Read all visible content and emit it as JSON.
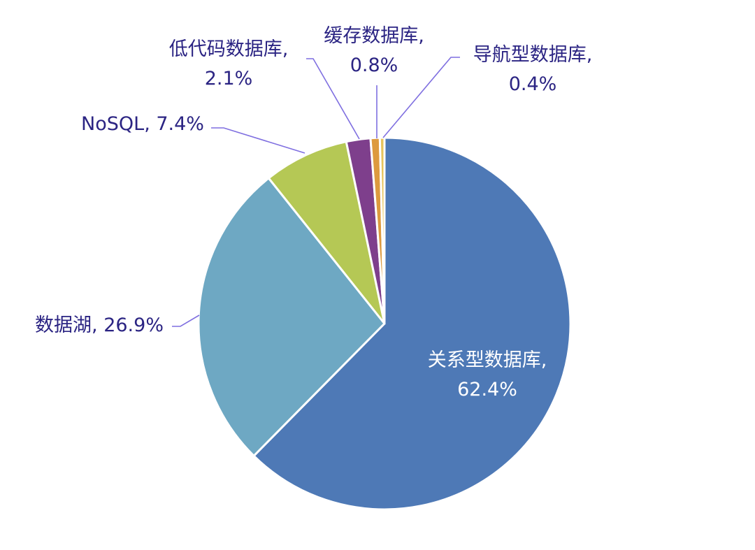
{
  "chart_data": {
    "type": "pie",
    "slices": [
      {
        "label": "关系型数据库",
        "value": 62.4,
        "display": "62.4%",
        "color": "#4e79b6",
        "label_position": "inside"
      },
      {
        "label": "数据湖",
        "value": 26.9,
        "display": "26.9%",
        "color": "#6ea8c3",
        "label_position": "outside"
      },
      {
        "label": "NoSQL",
        "value": 7.4,
        "display": "7.4%",
        "color": "#b5c855",
        "label_position": "outside"
      },
      {
        "label": "低代码数据库",
        "value": 2.1,
        "display": "2.1%",
        "color": "#7e3f8c",
        "label_position": "outside"
      },
      {
        "label": "缓存数据库",
        "value": 0.8,
        "display": "0.8%",
        "color": "#dd9a3e",
        "label_position": "outside"
      },
      {
        "label": "导航型数据库",
        "value": 0.4,
        "display": "0.4%",
        "color": "#e8c45c",
        "label_position": "outside"
      }
    ],
    "start_angle": "12 o'clock",
    "direction": "clockwise",
    "legend": "none",
    "label_color": "#2b2483",
    "leader_color": "#7f6fe0"
  }
}
